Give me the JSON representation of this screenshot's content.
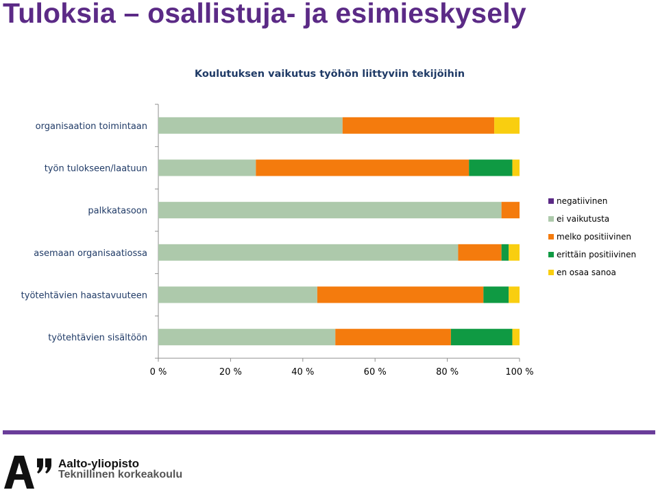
{
  "slide": {
    "title": "Tuloksia – osallistuja- ja esimieskysely",
    "university_name": "Aalto-yliopisto",
    "school_name": "Teknillinen korkeakoulu"
  },
  "colors": {
    "negatiivinen": "#5b2a86",
    "ei_vaikutusta": "#adc9ab",
    "melko_positiivinen": "#f47b0d",
    "erittain_positiivinen": "#0f9a43",
    "en_osaa_sanoa": "#f9ce10",
    "title": "#5b2a86",
    "footer_rule": "#6a3d9a"
  },
  "chart_data": {
    "type": "bar",
    "orientation": "horizontal",
    "stacked": "percent",
    "title": "Koulutuksen vaikutus työhön liittyviin tekijöihin",
    "xlabel": "",
    "ylabel": "",
    "xlim": [
      0,
      100
    ],
    "x_ticks": [
      "0 %",
      "20 %",
      "40 %",
      "60 %",
      "80 %",
      "100 %"
    ],
    "legend_position": "right",
    "grid": false,
    "categories": [
      "organisaation toimintaan",
      "työn tulokseen/laatuun",
      "palkkatasoon",
      "asemaan organisaatiossa",
      "työtehtävien haastavuuteen",
      "työtehtävien sisältöön"
    ],
    "series": [
      {
        "name": "negatiivinen",
        "color": "#5b2a86",
        "values": [
          0,
          0,
          0,
          0,
          0,
          0
        ]
      },
      {
        "name": "ei vaikutusta",
        "color": "#adc9ab",
        "values": [
          51,
          27,
          95,
          83,
          44,
          49
        ]
      },
      {
        "name": "melko positiivinen",
        "color": "#f47b0d",
        "values": [
          42,
          59,
          5,
          12,
          46,
          32
        ]
      },
      {
        "name": "erittäin positiivinen",
        "color": "#0f9a43",
        "values": [
          0,
          12,
          0,
          2,
          7,
          17
        ]
      },
      {
        "name": "en osaa sanoa",
        "color": "#f9ce10",
        "values": [
          7,
          2,
          0,
          3,
          3,
          2
        ]
      }
    ]
  }
}
